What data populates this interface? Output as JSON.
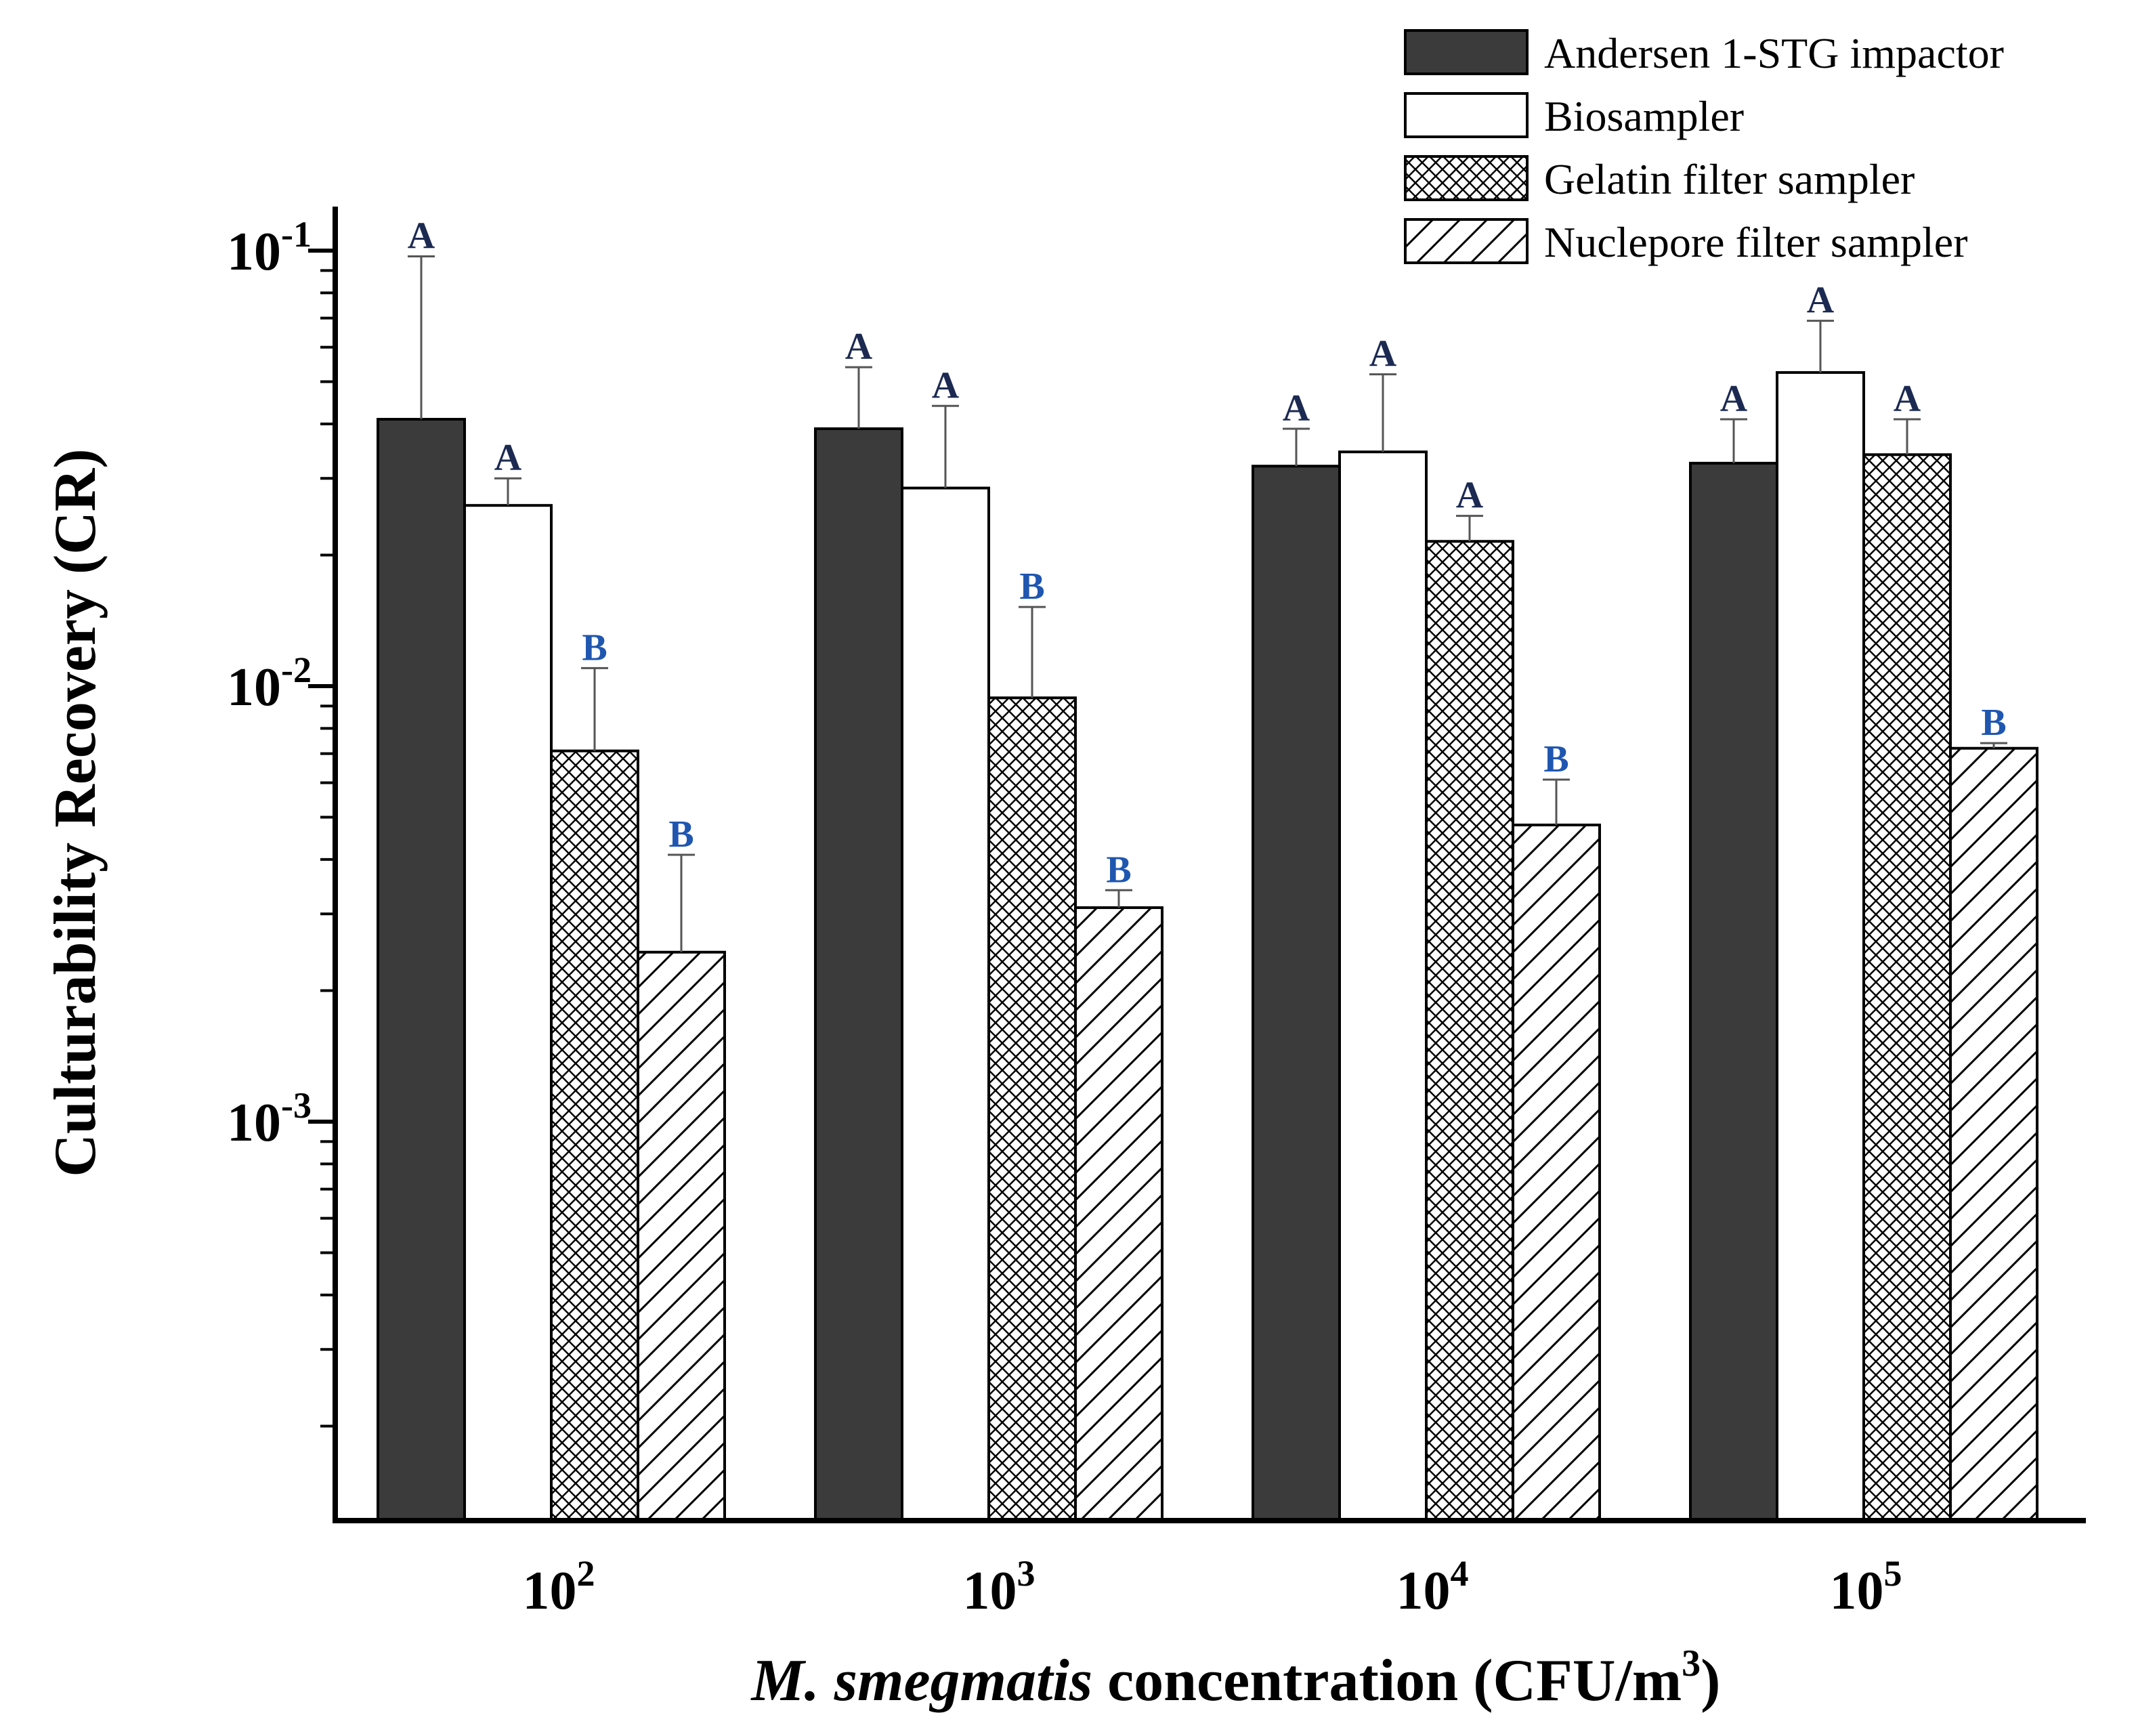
{
  "chart_data": {
    "type": "bar",
    "title": "",
    "categories": [
      "10^2",
      "10^3",
      "10^4",
      "10^5"
    ],
    "category_labels": [
      {
        "base": "10",
        "exp": "2"
      },
      {
        "base": "10",
        "exp": "3"
      },
      {
        "base": "10",
        "exp": "4"
      },
      {
        "base": "10",
        "exp": "5"
      }
    ],
    "xlabel": {
      "italic": "M. smegmatis",
      "rest": " concentration (CFU/m",
      "sup": "3",
      "end": ")"
    },
    "ylabel": "Culturability Recovery (CR)",
    "yscale": "log",
    "ylim": [
      0.00013,
      0.13
    ],
    "yticks": [
      {
        "value": 0.1,
        "base": "10",
        "exp": "-1"
      },
      {
        "value": 0.01,
        "base": "10",
        "exp": "-2"
      },
      {
        "value": 0.001,
        "base": "10",
        "exp": "-3"
      }
    ],
    "legend_position": "top-right",
    "series": [
      {
        "name": "Andersen 1-STG impactor",
        "pattern": "solid-dark",
        "values": [
          0.041,
          0.039,
          0.032,
          0.0325
        ],
        "errors": [
          0.097,
          0.054,
          0.039,
          0.041
        ],
        "sig": [
          "A",
          "A",
          "A",
          "A"
        ]
      },
      {
        "name": "Biosampler",
        "pattern": "open",
        "values": [
          0.026,
          0.0285,
          0.0345,
          0.0525
        ],
        "errors": [
          0.03,
          0.044,
          0.052,
          0.069
        ],
        "sig": [
          "A",
          "A",
          "A",
          "A"
        ]
      },
      {
        "name": "Gelatin filter sampler",
        "pattern": "crosshatch",
        "values": [
          0.0071,
          0.0094,
          0.0215,
          0.034
        ],
        "errors": [
          0.011,
          0.0152,
          0.0246,
          0.041
        ],
        "sig": [
          "B",
          "B",
          "A",
          "A"
        ]
      },
      {
        "name": "Nuclepore filter sampler",
        "pattern": "diagonal",
        "values": [
          0.00245,
          0.0031,
          0.0048,
          0.0072
        ],
        "errors": [
          0.0041,
          0.0034,
          0.0061,
          0.0074
        ],
        "sig": [
          "B",
          "B",
          "B",
          "B"
        ]
      }
    ],
    "sig_colors": {
      "A": "#1c2a52",
      "B": "#1f56b0"
    }
  },
  "colors": {
    "dark_bar": "#3b3b3b",
    "axis": "#000000",
    "error_bar": "#555555"
  }
}
